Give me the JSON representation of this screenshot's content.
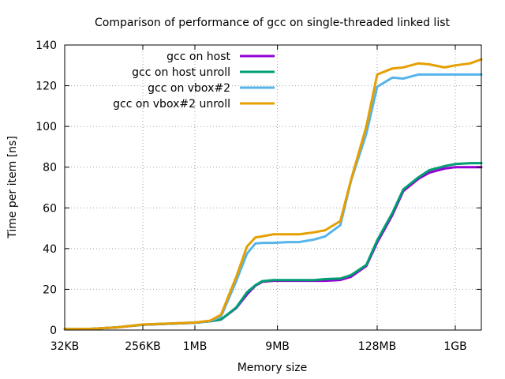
{
  "chart_data": {
    "type": "line",
    "title": "Comparison of performance of gcc on single-threaded linked list",
    "xlabel": "Memory size",
    "ylabel": "Time per item [ns]",
    "x_scale": "log2",
    "x_unit": "bytes",
    "xlim": [
      32768,
      2147483648
    ],
    "ylim": [
      0,
      140
    ],
    "grid": true,
    "legend_position": "top-left",
    "x_ticks": [
      {
        "value": 32768,
        "label": "32KB"
      },
      {
        "value": 262144,
        "label": "256KB"
      },
      {
        "value": 1048576,
        "label": "1MB"
      },
      {
        "value": 9437184,
        "label": "9MB"
      },
      {
        "value": 134217728,
        "label": "128MB"
      },
      {
        "value": 1073741824,
        "label": "1GB"
      }
    ],
    "y_ticks": [
      0,
      20,
      40,
      60,
      80,
      100,
      120,
      140
    ],
    "x": [
      32768,
      65536,
      131072,
      262144,
      524288,
      1048576,
      1572864,
      2097152,
      3145728,
      4194304,
      5242880,
      6291456,
      8388608,
      12582912,
      16777216,
      25165824,
      33554432,
      50331648,
      67108864,
      100663296,
      134217728,
      201326592,
      268435456,
      402653184,
      536870912,
      805306368,
      1073741824,
      1610612736,
      2147483648
    ],
    "series": [
      {
        "name": "gcc on host",
        "color": "#9400d3",
        "values": [
          0.5,
          0.6,
          1.3,
          2.6,
          3.1,
          3.6,
          4.3,
          5.1,
          10.8,
          17.5,
          21.8,
          23.7,
          24.2,
          24.2,
          24.2,
          24.2,
          24.2,
          24.6,
          26.2,
          31.5,
          43.0,
          56.5,
          68.2,
          74.3,
          77.3,
          79.3,
          80.0,
          80.0,
          80.0
        ]
      },
      {
        "name": "gcc on host unroll",
        "color": "#009e73",
        "values": [
          0.5,
          0.6,
          1.3,
          2.6,
          3.1,
          3.6,
          4.3,
          5.1,
          11.0,
          18.5,
          22.0,
          24.0,
          24.5,
          24.5,
          24.5,
          24.5,
          25.0,
          25.3,
          27.0,
          32.0,
          44.0,
          57.5,
          69.0,
          75.0,
          78.5,
          80.5,
          81.5,
          82.0,
          82.0
        ]
      },
      {
        "name": "gcc on vbox#2",
        "color": "#56b4e9",
        "values": [
          0.5,
          0.6,
          1.3,
          2.7,
          3.2,
          3.7,
          4.4,
          6.5,
          24.0,
          37.5,
          42.5,
          42.8,
          42.8,
          43.2,
          43.2,
          44.5,
          46.0,
          51.5,
          73.5,
          96.5,
          119.5,
          124.0,
          123.5,
          125.5,
          125.5,
          125.5,
          125.5,
          125.5,
          125.5
        ]
      },
      {
        "name": "gcc on vbox#2 unroll",
        "color": "#e69f00",
        "values": [
          0.5,
          0.6,
          1.3,
          2.7,
          3.2,
          3.7,
          4.6,
          7.5,
          26.0,
          41.0,
          45.5,
          46.0,
          47.0,
          47.0,
          47.0,
          48.0,
          49.0,
          53.5,
          74.0,
          100.0,
          125.5,
          128.5,
          129.0,
          131.0,
          130.5,
          129.0,
          130.0,
          131.0,
          133.0
        ]
      }
    ]
  }
}
